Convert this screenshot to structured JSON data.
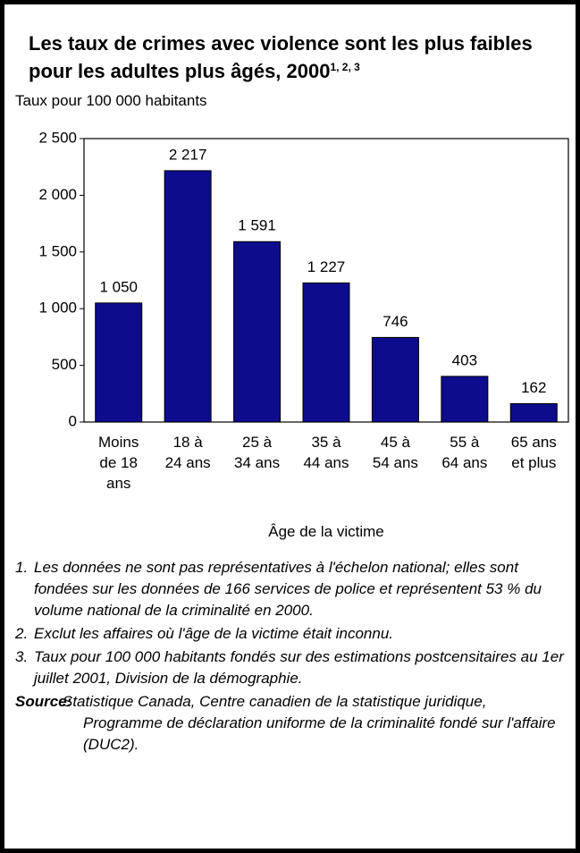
{
  "chart_data": {
    "type": "bar",
    "title": "Les taux de crimes avec violence sont les plus faibles pour les adultes plus âgés, 2000",
    "title_note_refs": "1, 2, 3",
    "subtitle": "Taux pour 100 000 habitants",
    "x_label": "Âge de la victime",
    "categories": [
      "Moins de 18 ans",
      "18 à 24 ans",
      "25 à 34 ans",
      "35 à 44 ans",
      "45 à 54 ans",
      "55 à 64 ans",
      "65 ans et plus"
    ],
    "values": [
      1050,
      2217,
      1591,
      1227,
      746,
      403,
      162
    ],
    "value_labels": [
      "1 050",
      "2 217",
      "1 591",
      "1 227",
      "746",
      "403",
      "162"
    ],
    "color": "#0c0c8c",
    "ylim": [
      0,
      2500
    ],
    "yticks": [
      0,
      500,
      {
        "value": 1000,
        "label": "1 000"
      },
      {
        "value": 1500,
        "label": "1 500"
      },
      {
        "value": 2000,
        "label": "2 000"
      },
      {
        "value": 2500,
        "label": "2 500"
      }
    ],
    "grid": false,
    "notes": [
      {
        "number": "1.",
        "text": "Les données ne sont pas représentatives à l'échelon national; elles sont fondées sur les données de 166 services de police et représentent 53 % du volume national de la criminalité en 2000."
      },
      {
        "number": "2.",
        "text": "Exclut les affaires où l'âge de la victime était inconnu."
      },
      {
        "number": "3.",
        "text": "Taux pour 100 000 habitants fondés sur des estimations postcensitaires au 1er juillet 2001, Division de la démographie."
      }
    ],
    "source_label": "Source:",
    "source": "Statistique Canada, Centre canadien de la statistique juridique, Programme de déclaration uniforme de la criminalité fondé sur l'affaire (DUC2)."
  }
}
